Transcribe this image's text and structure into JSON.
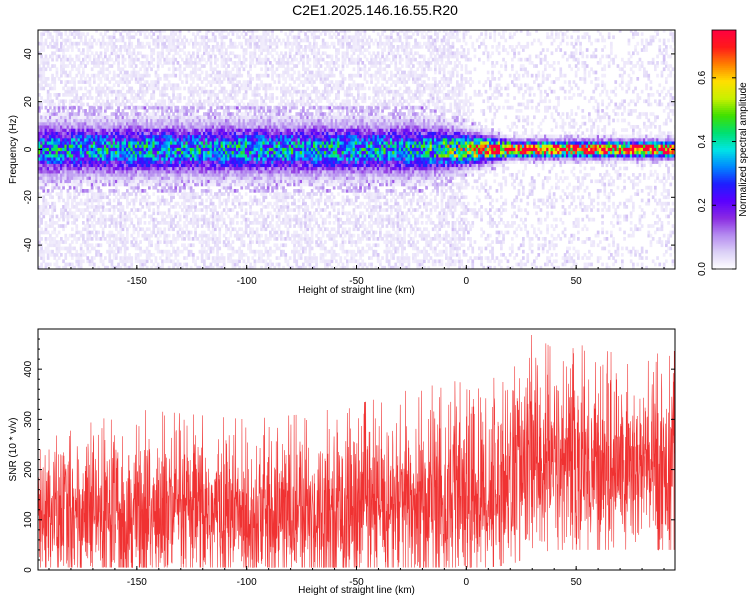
{
  "title": "C2E1.2025.146.16.55.R20",
  "colorbar": {
    "label": "Normalized spectral amplitude",
    "ticks": [
      "0.0",
      "0.2",
      "0.4",
      "0.6"
    ],
    "range": [
      0,
      0.75
    ],
    "colors": [
      "#ffffff",
      "#dcd1f7",
      "#b58cf0",
      "#8a2be2",
      "#5a00ff",
      "#1e1eff",
      "#0088ff",
      "#00e5e5",
      "#00e070",
      "#40e000",
      "#c8f000",
      "#ffe000",
      "#ff8000",
      "#ff1a1a",
      "#ff0040"
    ]
  },
  "chart_data": [
    {
      "type": "heatmap",
      "xlabel": "Height of straight line (km)",
      "ylabel": "Frequency (Hz)",
      "xlim": [
        -195,
        95
      ],
      "ylim": [
        -50,
        50
      ],
      "xticks": [
        -150,
        -100,
        -50,
        0,
        50
      ],
      "yticks": [
        -40,
        -20,
        0,
        20,
        40
      ],
      "description_values": {
        "band_center_hz": 0,
        "band_halfwidth_hz_low_heights": 6,
        "band_halfwidth_hz_high_heights": 2,
        "band_peak_amplitude_high_heights": 0.75,
        "band_peak_amplitude_low_heights": 0.35
      }
    },
    {
      "type": "line",
      "xlabel": "Height of straight line (km)",
      "ylabel": "SNR (10 * v/v)",
      "xlim": [
        -195,
        95
      ],
      "ylim": [
        0,
        480
      ],
      "xticks": [
        -150,
        -100,
        -50,
        0,
        50
      ],
      "yticks": [
        0,
        100,
        200,
        300,
        400
      ],
      "series": [
        {
          "color": "#f03232",
          "x": [
            -195,
            -175,
            -150,
            -125,
            -100,
            -75,
            -50,
            -25,
            0,
            10,
            20,
            30,
            40,
            50,
            60,
            70,
            80,
            92
          ],
          "y_min": [
            5,
            5,
            5,
            5,
            5,
            5,
            5,
            5,
            5,
            5,
            10,
            30,
            40,
            40,
            40,
            40,
            40,
            40
          ],
          "y_max": [
            270,
            290,
            320,
            310,
            300,
            310,
            330,
            360,
            380,
            370,
            420,
            470,
            440,
            450,
            440,
            430,
            420,
            450
          ],
          "y_center": [
            110,
            110,
            110,
            110,
            110,
            110,
            120,
            125,
            140,
            150,
            190,
            210,
            215,
            210,
            205,
            205,
            205,
            205
          ]
        }
      ]
    }
  ]
}
